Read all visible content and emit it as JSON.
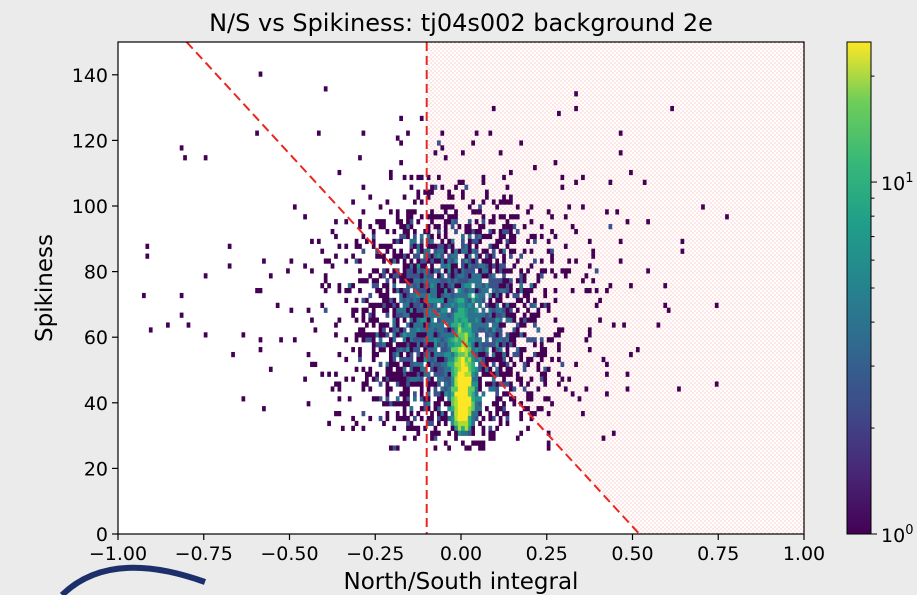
{
  "chart_data": {
    "type": "heatmap",
    "title": "N/S vs Spikiness: tj04s002 background 2e",
    "xlabel": "North/South integral",
    "ylabel": "Spikiness",
    "xlim": [
      -1.0,
      1.0
    ],
    "ylim": [
      0,
      150
    ],
    "x_ticks": [
      -1.0,
      -0.75,
      -0.5,
      -0.25,
      0.0,
      0.25,
      0.5,
      0.75,
      1.0
    ],
    "x_tick_labels": [
      "−1.00",
      "−0.75",
      "−0.50",
      "−0.25",
      "0.00",
      "0.25",
      "0.50",
      "0.75",
      "1.00"
    ],
    "y_ticks": [
      0,
      20,
      40,
      60,
      80,
      100,
      120,
      140
    ],
    "y_tick_labels": [
      "0",
      "20",
      "40",
      "60",
      "80",
      "100",
      "120",
      "140"
    ],
    "colorbar": {
      "scale": "log",
      "colormap": "viridis",
      "range": [
        1,
        25
      ],
      "tick_labels": [
        {
          "base": "10",
          "exp": "0",
          "value": 1
        },
        {
          "base": "10",
          "exp": "1",
          "value": 10
        }
      ]
    },
    "cuts": {
      "vertical_line_x": -0.1,
      "diagonal_line": {
        "x1": -0.8,
        "y1": 150,
        "x2": 0.52,
        "y2": 0
      },
      "line_color": "#e8281e",
      "line_style": "dashed",
      "shaded_region": "right of vertical line and above diagonal line (red dotted hatch)"
    },
    "distribution": {
      "description": "2D histogram of events; dense core near North/South integral 0.0 at Spikiness 30-55, scattered tail extending to x -0.95..0.75 and Spikiness 25..140",
      "peak_counts": 25
    },
    "grid": false
  },
  "colors": {
    "background": "#ebebeb",
    "plot_area": "#ffffff",
    "cut_line": "#e8281e",
    "logo_arc": "#1c2f6b"
  }
}
